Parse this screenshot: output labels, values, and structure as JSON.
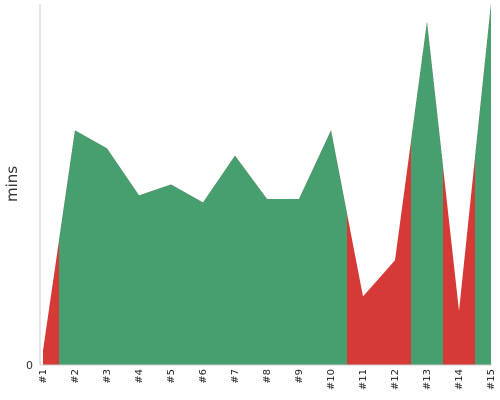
{
  "chart_data": {
    "type": "area",
    "title": "",
    "xlabel": "",
    "ylabel": "mins",
    "ylim": [
      0,
      100
    ],
    "y_ticks": [
      "0"
    ],
    "grid": false,
    "legend": "none",
    "categories": [
      "#1",
      "#2",
      "#3",
      "#4",
      "#5",
      "#6",
      "#7",
      "#8",
      "#9",
      "#10",
      "#11",
      "#12",
      "#13",
      "#14",
      "#15"
    ],
    "values": [
      4,
      65,
      60,
      47,
      50,
      45,
      58,
      46,
      46,
      65,
      19,
      29,
      95,
      15,
      100
    ],
    "status": [
      "red",
      "green",
      "green",
      "green",
      "green",
      "green",
      "green",
      "green",
      "green",
      "green",
      "red",
      "red",
      "green",
      "red",
      "green"
    ],
    "colors": {
      "green": "#479e6e",
      "red": "#d63a37"
    }
  }
}
